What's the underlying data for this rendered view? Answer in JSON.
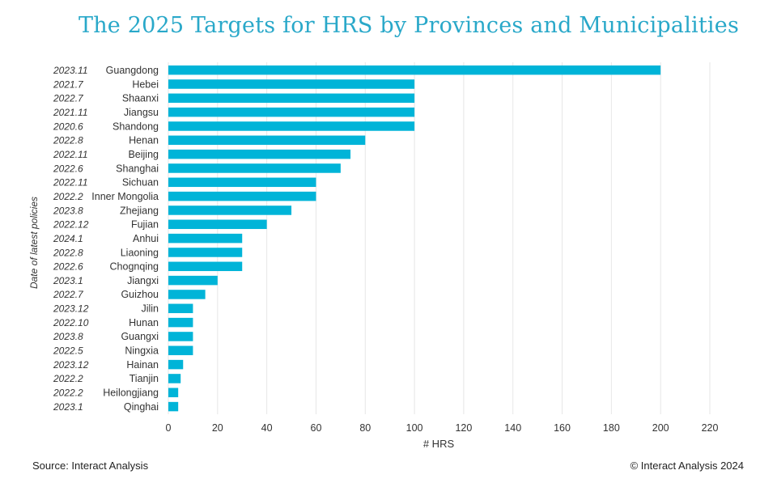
{
  "chart_data": {
    "type": "bar",
    "orientation": "horizontal",
    "title": "The 2025 Targets for HRS by Provinces and Municipalities",
    "xlabel": "# HRS",
    "ylabel": "Date of latest policies",
    "xlim": [
      0,
      220
    ],
    "xticks": [
      0,
      20,
      40,
      60,
      80,
      100,
      120,
      140,
      160,
      180,
      200,
      220
    ],
    "grid": "vertical",
    "bar_color": "#00b4d8",
    "categories": [
      "Guangdong",
      "Hebei",
      "Shaanxi",
      "Jiangsu",
      "Shandong",
      "Henan",
      "Beijing",
      "Shanghai",
      "Sichuan",
      "Inner Mongolia",
      "Zhejiang",
      "Fujian",
      "Anhui",
      "Liaoning",
      "Chognqing",
      "Jiangxi",
      "Guizhou",
      "Jilin",
      "Hunan",
      "Guangxi",
      "Ningxia",
      "Hainan",
      "Tianjin",
      "Heilongjiang",
      "Qinghai"
    ],
    "dates": [
      "2023.11",
      "2021.7",
      "2022.7",
      "2021.11",
      "2020.6",
      "2022.8",
      "2022.11",
      "2022.6",
      "2022.11",
      "2022.2",
      "2023.8",
      "2022.12",
      "2024.1",
      "2022.8",
      "2022.6",
      "2023.1",
      "2022.7",
      "2023.12",
      "2022.10",
      "2023.8",
      "2022.5",
      "2023.12",
      "2022.2",
      "2022.2",
      "2023.1"
    ],
    "values": [
      200,
      100,
      100,
      100,
      100,
      80,
      74,
      70,
      60,
      60,
      50,
      40,
      30,
      30,
      30,
      20,
      15,
      10,
      10,
      10,
      10,
      6,
      5,
      4,
      4
    ]
  },
  "footer": {
    "source": "Source: Interact Analysis",
    "copyright": "© Interact Analysis 2024"
  },
  "colors": {
    "title": "#29a8c9",
    "bar": "#00b4d8",
    "grid": "#e6e6e6",
    "text": "#333333"
  }
}
